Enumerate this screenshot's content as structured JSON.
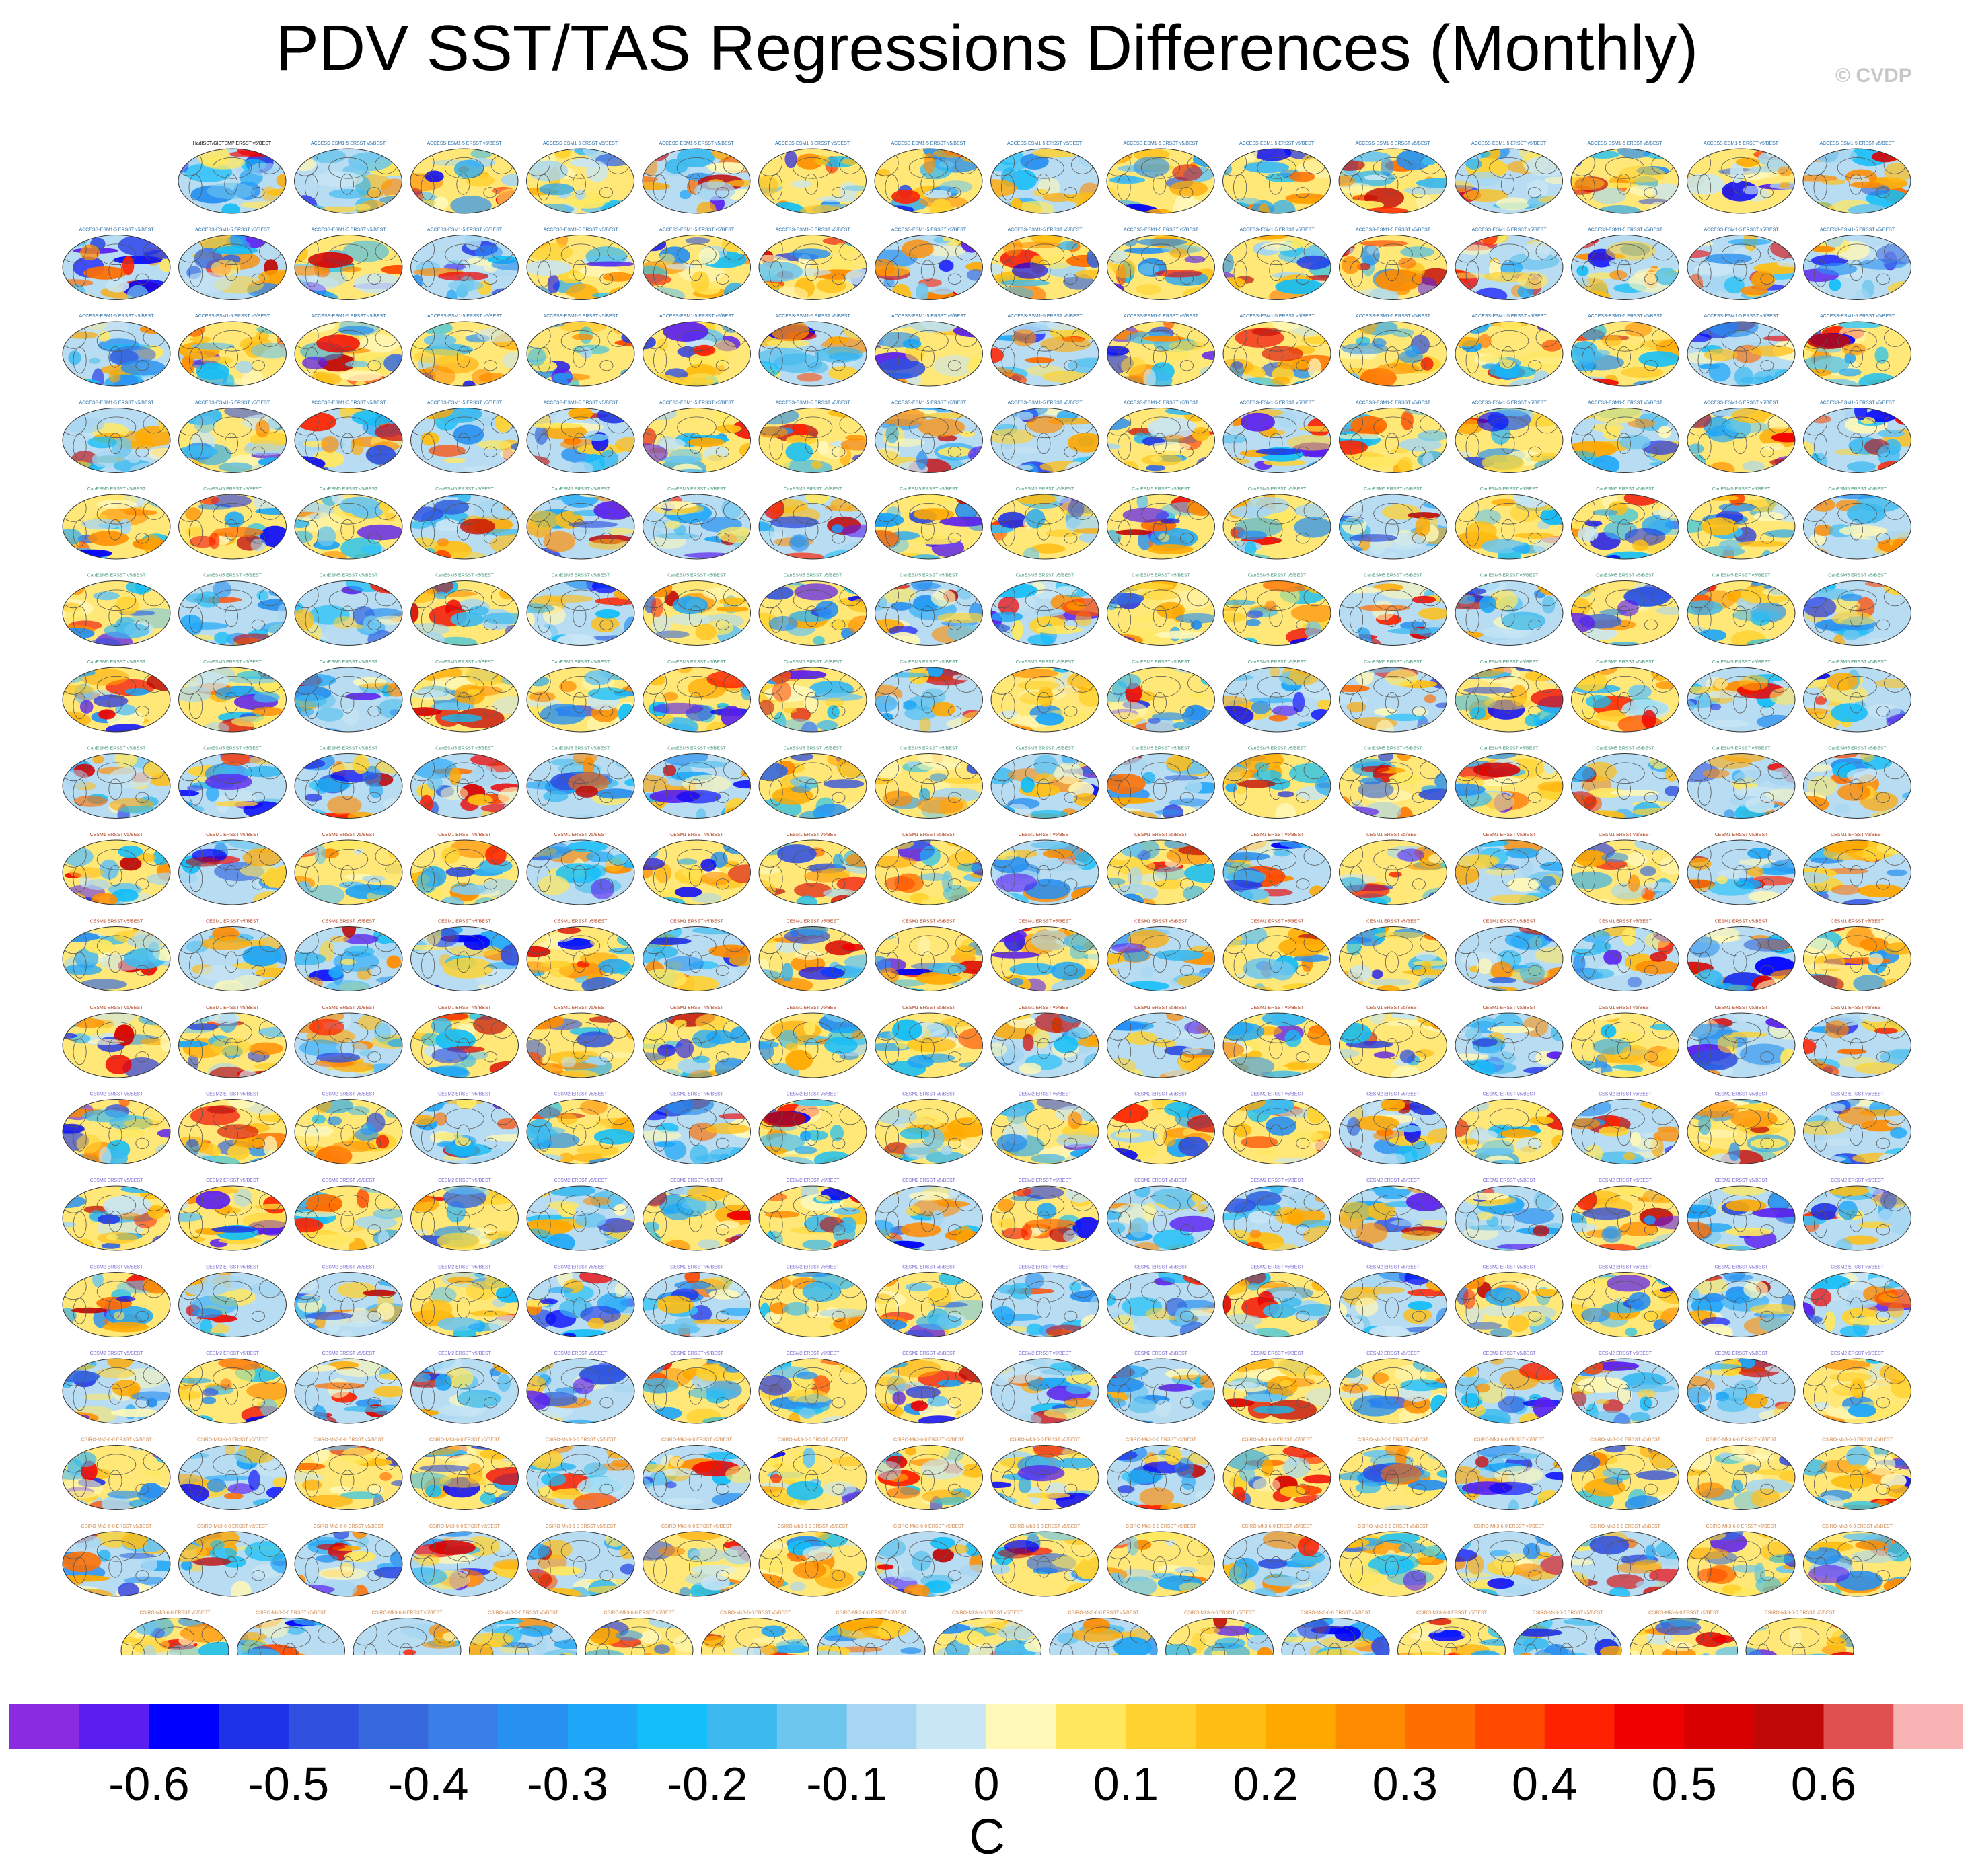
{
  "title": "PDV SST/TAS Regressions Differences (Monthly)",
  "watermark": "© CVDP",
  "chart_data": {
    "type": "heatmap",
    "title": "PDV SST/TAS Regressions Differences (Monthly)",
    "description_layout": "small-multiples grid of global map panels",
    "rows": 18,
    "panels_per_row": [
      15,
      16,
      16,
      16,
      16,
      16,
      16,
      16,
      16,
      16,
      16,
      16,
      16,
      16,
      16,
      16,
      16,
      15
    ],
    "first_panel_label": "HadISST/GISTEMP ERSST v5/BEST",
    "panel_label_prefix_groups": [
      {
        "label": "ACCESS-ESM1-5 ERSST v5/BEST",
        "color": "#2a6fa8"
      },
      {
        "label": "CanESM5 ERSST v5/BEST",
        "color": "#4a9a7a"
      },
      {
        "label": "CESM1 ERSST v5/BEST",
        "color": "#b04020"
      },
      {
        "label": "CESM2 ERSST v5/BEST",
        "color": "#7a6ad0"
      },
      {
        "label": "CSIRO-Mk3-6-0 ERSST v5/BEST",
        "color": "#d08a50"
      }
    ],
    "colorbar": {
      "units": "C",
      "colors": [
        "#8a2be2",
        "#5a1ef0",
        "#0000ff",
        "#1e32e8",
        "#3050e0",
        "#3668de",
        "#3a7ee8",
        "#2890f0",
        "#1ea6f8",
        "#14bef8",
        "#3cbaf0",
        "#6cc6ee",
        "#a6d6f2",
        "#c8e6f4",
        "#fff8b8",
        "#ffe860",
        "#ffd230",
        "#ffbe14",
        "#ffa800",
        "#ff8c00",
        "#ff6e00",
        "#ff4a00",
        "#ff2200",
        "#f00000",
        "#d80000",
        "#c00808",
        "#e05050",
        "#f8b4b4"
      ],
      "tick_labels": [
        "-0.6",
        "-0.5",
        "-0.4",
        "-0.3",
        "-0.2",
        "-0.1",
        "0",
        "0.1",
        "0.2",
        "0.3",
        "0.4",
        "0.5",
        "0.6"
      ],
      "tick_values": [
        -0.6,
        -0.5,
        -0.4,
        -0.3,
        -0.2,
        -0.1,
        0,
        0.1,
        0.2,
        0.3,
        0.4,
        0.5,
        0.6
      ],
      "range": [
        -0.7,
        0.7
      ]
    }
  }
}
